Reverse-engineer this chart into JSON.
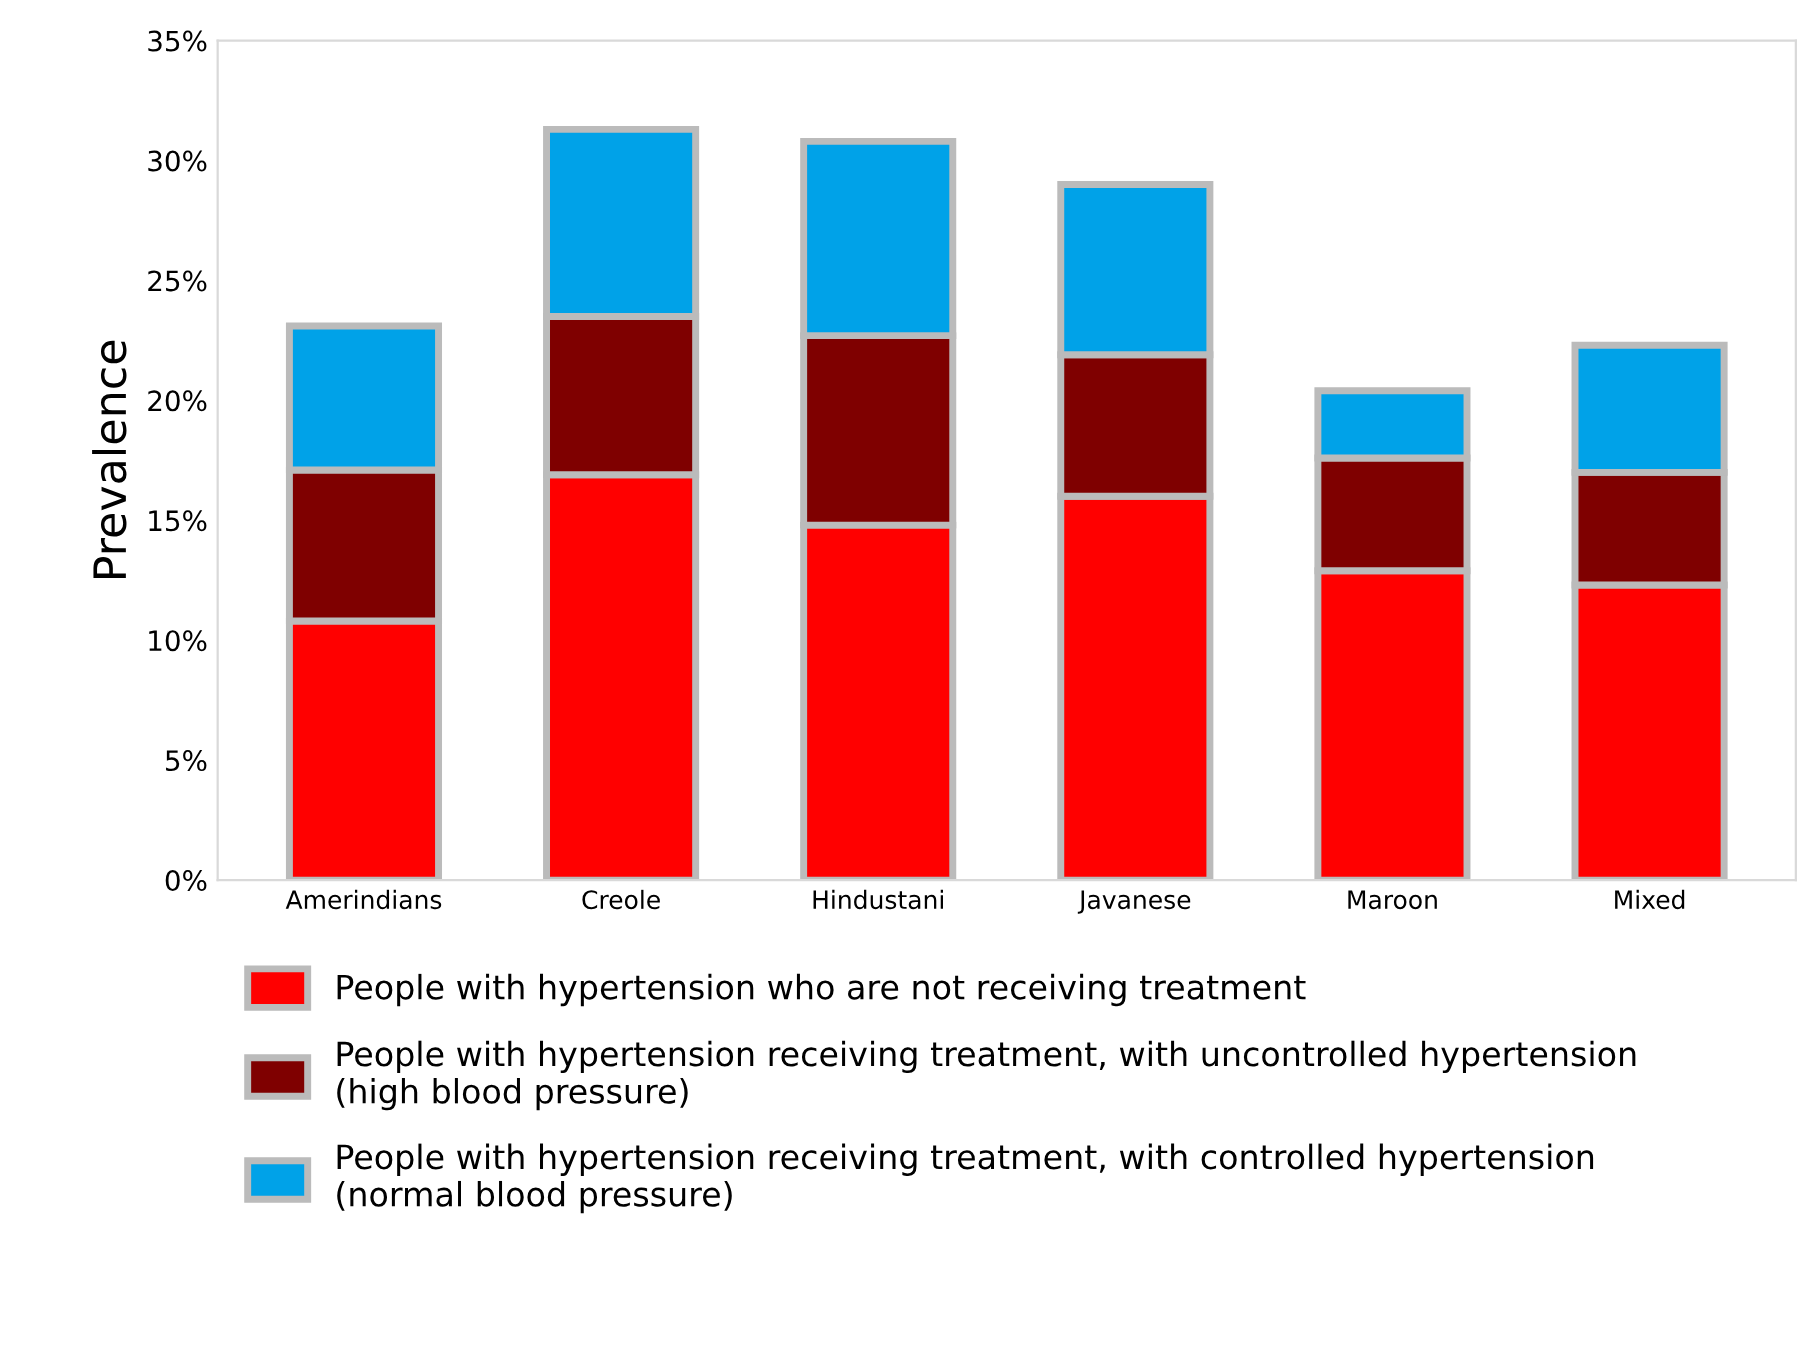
{
  "chart_data": {
    "type": "bar",
    "stacked": true,
    "ylabel": "Prevalence",
    "categories": [
      "Amerindians",
      "Creole",
      "Hindustani",
      "Javanese",
      "Maroon",
      "Mixed"
    ],
    "series": [
      {
        "name": "People with hypertension who are not receiving treatment",
        "color": "#ff0000",
        "values": [
          10.8,
          16.9,
          14.8,
          16.0,
          12.9,
          12.3
        ]
      },
      {
        "name": "People with hypertension receiving treatment, with uncontrolled hypertension (high blood pressure)",
        "color": "#7f0000",
        "values": [
          6.3,
          6.6,
          7.9,
          5.9,
          4.7,
          4.7
        ]
      },
      {
        "name": "People with hypertension receiving treatment, with controlled hypertension (normal blood pressure)",
        "color": "#00a2e8",
        "values": [
          6.0,
          7.8,
          8.1,
          7.1,
          2.8,
          5.3
        ]
      }
    ],
    "ylim": [
      0,
      35
    ],
    "yticks": [
      {
        "value": 0,
        "label": "0%"
      },
      {
        "value": 5,
        "label": "5%"
      },
      {
        "value": 10,
        "label": "10%"
      },
      {
        "value": 15,
        "label": "15%"
      },
      {
        "value": 20,
        "label": "20%"
      },
      {
        "value": 25,
        "label": "25%"
      },
      {
        "value": 30,
        "label": "30%"
      },
      {
        "value": 35,
        "label": "35%"
      }
    ],
    "grid": false,
    "legend": "bottom"
  }
}
